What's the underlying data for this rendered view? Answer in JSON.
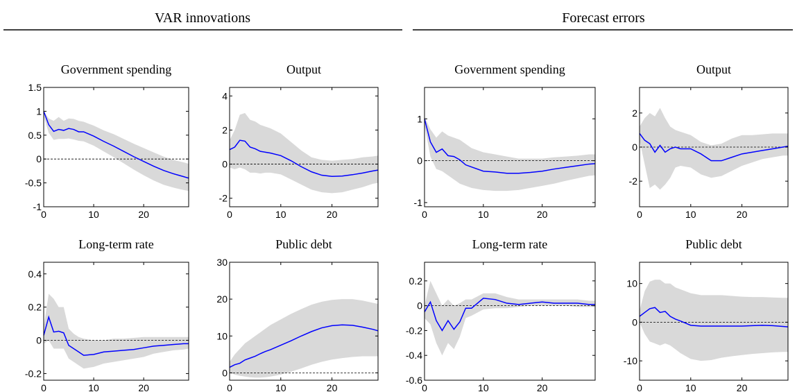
{
  "sections": [
    {
      "title": "VAR innovations"
    },
    {
      "title": "Forecast errors"
    }
  ],
  "chart_data": [
    {
      "type": "line",
      "title": "Government spending",
      "xlim": [
        0,
        29
      ],
      "xticks": [
        0,
        10,
        20
      ],
      "ylim": [
        -1,
        1.5
      ],
      "yticks": [
        -1,
        -0.5,
        0,
        0.5,
        1,
        1.5
      ],
      "hline": 0,
      "color": "#0000ff",
      "band_color": "#d9d9d9",
      "x": [
        0,
        1,
        2,
        3,
        4,
        5,
        6,
        7,
        8,
        10,
        12,
        14,
        16,
        18,
        20,
        22,
        24,
        26,
        28,
        29
      ],
      "values": [
        1.0,
        0.72,
        0.58,
        0.62,
        0.6,
        0.64,
        0.62,
        0.57,
        0.57,
        0.48,
        0.37,
        0.27,
        0.16,
        0.05,
        -0.05,
        -0.15,
        -0.24,
        -0.31,
        -0.37,
        -0.4
      ],
      "lower": [
        0.9,
        0.55,
        0.4,
        0.42,
        0.42,
        0.43,
        0.41,
        0.38,
        0.37,
        0.28,
        0.16,
        0.04,
        -0.09,
        -0.22,
        -0.34,
        -0.45,
        -0.54,
        -0.6,
        -0.65,
        -0.67
      ],
      "upper": [
        1.0,
        0.85,
        0.8,
        0.88,
        0.8,
        0.85,
        0.84,
        0.8,
        0.78,
        0.7,
        0.6,
        0.52,
        0.42,
        0.32,
        0.23,
        0.14,
        0.05,
        -0.02,
        -0.07,
        -0.1
      ]
    },
    {
      "type": "line",
      "title": "Output",
      "xlim": [
        0,
        29
      ],
      "xticks": [
        0,
        10,
        20
      ],
      "ylim": [
        -2.5,
        4.5
      ],
      "yticks": [
        -2,
        0,
        2,
        4
      ],
      "hline": 0,
      "color": "#0000ff",
      "band_color": "#d9d9d9",
      "x": [
        0,
        1,
        2,
        3,
        4,
        5,
        6,
        7,
        8,
        10,
        12,
        14,
        16,
        18,
        20,
        22,
        24,
        26,
        28,
        29
      ],
      "values": [
        0.85,
        1.0,
        1.4,
        1.35,
        1.0,
        0.9,
        0.75,
        0.7,
        0.65,
        0.5,
        0.2,
        -0.15,
        -0.45,
        -0.65,
        -0.72,
        -0.7,
        -0.62,
        -0.52,
        -0.4,
        -0.35
      ],
      "lower": [
        -0.2,
        -0.3,
        -0.2,
        -0.3,
        -0.5,
        -0.5,
        -0.55,
        -0.5,
        -0.5,
        -0.6,
        -0.9,
        -1.2,
        -1.5,
        -1.65,
        -1.7,
        -1.65,
        -1.5,
        -1.35,
        -1.15,
        -1.1
      ],
      "upper": [
        1.4,
        2.0,
        2.9,
        3.0,
        2.6,
        2.5,
        2.3,
        2.2,
        2.1,
        1.8,
        1.3,
        0.8,
        0.4,
        0.25,
        0.2,
        0.25,
        0.3,
        0.4,
        0.45,
        0.5
      ]
    },
    {
      "type": "line",
      "title": "Government spending",
      "xlim": [
        0,
        29
      ],
      "xticks": [
        0,
        10,
        20
      ],
      "ylim": [
        -1.1,
        1.75
      ],
      "yticks": [
        -1,
        0,
        1
      ],
      "hline": 0,
      "color": "#0000ff",
      "band_color": "#d9d9d9",
      "x": [
        0,
        1,
        2,
        3,
        4,
        5,
        6,
        7,
        8,
        10,
        12,
        14,
        16,
        18,
        20,
        22,
        24,
        26,
        28,
        29
      ],
      "values": [
        1.0,
        0.45,
        0.2,
        0.28,
        0.12,
        0.1,
        0.02,
        -0.1,
        -0.15,
        -0.25,
        -0.27,
        -0.3,
        -0.3,
        -0.28,
        -0.25,
        -0.2,
        -0.16,
        -0.12,
        -0.08,
        -0.07
      ],
      "lower": [
        0.85,
        0.1,
        -0.2,
        -0.25,
        -0.35,
        -0.45,
        -0.55,
        -0.6,
        -0.65,
        -0.7,
        -0.72,
        -0.72,
        -0.7,
        -0.65,
        -0.6,
        -0.55,
        -0.48,
        -0.42,
        -0.36,
        -0.35
      ],
      "upper": [
        1.05,
        0.75,
        0.55,
        0.7,
        0.6,
        0.55,
        0.5,
        0.4,
        0.3,
        0.2,
        0.15,
        0.1,
        0.05,
        0.05,
        0.05,
        0.08,
        0.1,
        0.12,
        0.15,
        0.15
      ]
    },
    {
      "type": "line",
      "title": "Output",
      "xlim": [
        0,
        29
      ],
      "xticks": [
        0,
        10,
        20
      ],
      "ylim": [
        -3.5,
        3.5
      ],
      "yticks": [
        -2,
        0,
        2
      ],
      "hline": 0,
      "color": "#0000ff",
      "band_color": "#d9d9d9",
      "x": [
        0,
        1,
        2,
        3,
        4,
        5,
        6,
        7,
        8,
        10,
        12,
        14,
        16,
        18,
        20,
        22,
        24,
        26,
        28,
        29
      ],
      "values": [
        0.8,
        0.4,
        0.2,
        -0.3,
        0.1,
        -0.3,
        -0.1,
        0.0,
        -0.1,
        -0.1,
        -0.4,
        -0.8,
        -0.8,
        -0.6,
        -0.4,
        -0.3,
        -0.2,
        -0.1,
        0.0,
        0.05
      ],
      "lower": [
        0.4,
        -1,
        -2.4,
        -2.2,
        -2.5,
        -2.2,
        -1.8,
        -1.2,
        -1.1,
        -1.2,
        -1.6,
        -1.8,
        -1.7,
        -1.4,
        -1.1,
        -0.9,
        -0.7,
        -0.6,
        -0.5,
        -0.5
      ],
      "upper": [
        1.2,
        1.7,
        2.0,
        1.8,
        2.3,
        1.7,
        1.2,
        1.0,
        0.9,
        0.7,
        0.3,
        0.1,
        0.2,
        0.5,
        0.7,
        0.7,
        0.75,
        0.8,
        0.8,
        0.8
      ]
    },
    {
      "type": "line",
      "title": "Long-term rate",
      "xlim": [
        0,
        29
      ],
      "xticks": [
        0,
        10,
        20
      ],
      "ylim": [
        -0.24,
        0.47
      ],
      "yticks": [
        -0.2,
        0,
        0.2,
        0.4
      ],
      "hline": 0,
      "color": "#0000ff",
      "band_color": "#d9d9d9",
      "x": [
        0,
        1,
        2,
        3,
        4,
        5,
        6,
        7,
        8,
        10,
        12,
        14,
        16,
        18,
        20,
        22,
        24,
        26,
        28,
        29
      ],
      "values": [
        0.03,
        0.14,
        0.05,
        0.055,
        0.045,
        -0.03,
        -0.05,
        -0.07,
        -0.09,
        -0.085,
        -0.07,
        -0.065,
        -0.06,
        -0.055,
        -0.045,
        -0.035,
        -0.03,
        -0.025,
        -0.02,
        -0.02
      ],
      "lower": [
        -0.02,
        0.0,
        -0.05,
        -0.05,
        -0.05,
        -0.11,
        -0.13,
        -0.15,
        -0.17,
        -0.16,
        -0.14,
        -0.13,
        -0.12,
        -0.11,
        -0.1,
        -0.08,
        -0.07,
        -0.06,
        -0.055,
        -0.05
      ],
      "upper": [
        0.08,
        0.28,
        0.25,
        0.2,
        0.2,
        0.07,
        0.04,
        0.02,
        0.01,
        0.0,
        0.0,
        0.01,
        0.01,
        0.015,
        0.02,
        0.02,
        0.02,
        0.02,
        0.02,
        0.02
      ]
    },
    {
      "type": "line",
      "title": "Public debt",
      "xlim": [
        0,
        29
      ],
      "xticks": [
        0,
        10,
        20
      ],
      "ylim": [
        -2,
        30
      ],
      "yticks": [
        0,
        10,
        20,
        30
      ],
      "hline": 0,
      "color": "#0000ff",
      "band_color": "#d9d9d9",
      "x": [
        0,
        1,
        2,
        3,
        4,
        5,
        6,
        7,
        8,
        10,
        12,
        14,
        16,
        18,
        20,
        22,
        24,
        26,
        28,
        29
      ],
      "values": [
        1.5,
        2.2,
        2.6,
        3.5,
        4,
        4.5,
        5.2,
        5.8,
        6.3,
        7.5,
        8.7,
        10,
        11.2,
        12.2,
        12.8,
        13,
        12.9,
        12.4,
        11.8,
        11.4
      ],
      "lower": [
        0,
        -0.5,
        -0.8,
        -1,
        -1.2,
        -1.3,
        -1.3,
        -1.2,
        -1.0,
        -0.5,
        0.3,
        1.2,
        2.2,
        3,
        3.6,
        4,
        4.3,
        4.5,
        4.5,
        4.5
      ],
      "upper": [
        3,
        5,
        6.5,
        8,
        9,
        10,
        11,
        12,
        13,
        14.5,
        16,
        17.3,
        18.5,
        19.3,
        19.8,
        20,
        20,
        19.6,
        19,
        18.7
      ]
    },
    {
      "type": "line",
      "title": "Long-term rate",
      "xlim": [
        0,
        29
      ],
      "xticks": [
        0,
        10,
        20
      ],
      "ylim": [
        -0.6,
        0.35
      ],
      "yticks": [
        -0.6,
        -0.4,
        -0.2,
        0,
        0.2
      ],
      "hline": 0,
      "color": "#0000ff",
      "band_color": "#d9d9d9",
      "x": [
        0,
        1,
        2,
        3,
        4,
        5,
        6,
        7,
        8,
        10,
        12,
        14,
        16,
        18,
        20,
        22,
        24,
        26,
        28,
        29
      ],
      "values": [
        -0.05,
        0.03,
        -0.12,
        -0.2,
        -0.12,
        -0.19,
        -0.13,
        -0.02,
        -0.02,
        0.06,
        0.05,
        0.02,
        0.01,
        0.02,
        0.03,
        0.02,
        0.02,
        0.02,
        0.01,
        0.01
      ],
      "lower": [
        -0.1,
        -0.15,
        -0.3,
        -0.4,
        -0.3,
        -0.35,
        -0.25,
        -0.1,
        -0.08,
        -0.03,
        -0.02,
        -0.02,
        -0.01,
        0,
        0,
        0,
        0,
        -0.01,
        -0.01,
        -0.01
      ],
      "upper": [
        0,
        0.2,
        0.1,
        0.0,
        0.05,
        0.0,
        0.02,
        0.05,
        0.05,
        0.1,
        0.1,
        0.07,
        0.05,
        0.05,
        0.05,
        0.05,
        0.05,
        0.05,
        0.04,
        0.04
      ]
    },
    {
      "type": "line",
      "title": "Public debt",
      "xlim": [
        0,
        29
      ],
      "xticks": [
        0,
        10,
        20
      ],
      "ylim": [
        -15,
        15.5
      ],
      "yticks": [
        -10,
        0,
        10
      ],
      "hline": 0,
      "color": "#0000ff",
      "band_color": "#d9d9d9",
      "x": [
        0,
        1,
        2,
        3,
        4,
        5,
        6,
        7,
        8,
        10,
        12,
        14,
        16,
        18,
        20,
        22,
        24,
        26,
        28,
        29
      ],
      "values": [
        1.5,
        2.5,
        3.5,
        3.8,
        2.5,
        2.8,
        1.5,
        0.8,
        0.3,
        -0.8,
        -1,
        -1,
        -1,
        -1,
        -1,
        -0.9,
        -0.8,
        -0.9,
        -1.1,
        -1.2
      ],
      "lower": [
        0,
        -3,
        -5,
        -5.5,
        -6,
        -5.5,
        -6,
        -7,
        -8,
        -9.5,
        -10,
        -9.8,
        -9.2,
        -8.8,
        -8.5,
        -8.2,
        -8,
        -7.8,
        -7.7,
        -7.7
      ],
      "upper": [
        3,
        8,
        10.5,
        11,
        11,
        10,
        10,
        9,
        8.5,
        7.5,
        7,
        7,
        7,
        6.8,
        6.6,
        6.5,
        6.5,
        6.4,
        6.3,
        6.3
      ]
    }
  ]
}
